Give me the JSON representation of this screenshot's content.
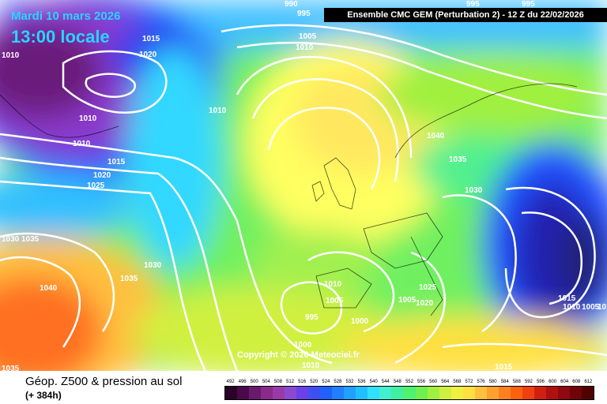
{
  "header": {
    "date": "Mardi 10 mars 2026",
    "time": "13:00 locale",
    "banner": "Ensemble CMC GEM  (Perturbation 2)  -  12 Z du 22/02/2026"
  },
  "copyright": "Copyright © 2026 Meteociel.fr",
  "footer": {
    "title": "Géop. Z500 & pression au sol",
    "subtitle": "(+ 384h)"
  },
  "isobars": [
    {
      "label": "990"
    },
    {
      "label": "995"
    },
    {
      "label": "995"
    },
    {
      "label": "995"
    },
    {
      "label": "1015"
    },
    {
      "label": "1020"
    },
    {
      "label": "1010"
    },
    {
      "label": "1010"
    },
    {
      "label": "1010"
    },
    {
      "label": "1015"
    },
    {
      "label": "1020"
    },
    {
      "label": "1025"
    },
    {
      "label": "1005"
    },
    {
      "label": "1010"
    },
    {
      "label": "1010"
    },
    {
      "label": "1040"
    },
    {
      "label": "1035"
    },
    {
      "label": "1030"
    },
    {
      "label": "1030"
    },
    {
      "label": "1035"
    },
    {
      "label": "1040"
    },
    {
      "label": "1030"
    },
    {
      "label": "1035"
    },
    {
      "label": "1010"
    },
    {
      "label": "1005"
    },
    {
      "label": "995"
    },
    {
      "label": "1000"
    },
    {
      "label": "1000"
    },
    {
      "label": "1010"
    },
    {
      "label": "1025"
    },
    {
      "label": "1005"
    },
    {
      "label": "1020"
    },
    {
      "label": "1015"
    },
    {
      "label": "1010"
    },
    {
      "label": "1005"
    },
    {
      "label": "10"
    },
    {
      "label": "1015"
    },
    {
      "label": "1035"
    }
  ],
  "legend": {
    "ticks": [
      "492",
      "496",
      "500",
      "504",
      "508",
      "512",
      "516",
      "520",
      "524",
      "528",
      "532",
      "536",
      "540",
      "544",
      "548",
      "552",
      "556",
      "560",
      "564",
      "568",
      "572",
      "576",
      "580",
      "584",
      "588",
      "592",
      "596",
      "600",
      "604",
      "608",
      "612"
    ],
    "colors": [
      "#2a0028",
      "#4a0a4a",
      "#6a1a6a",
      "#8a2a8a",
      "#9a3aa8",
      "#8a4ad0",
      "#6a40e8",
      "#4050f0",
      "#2060ff",
      "#2080ff",
      "#20a0ff",
      "#20c0ff",
      "#30e0ff",
      "#40f0d0",
      "#40f0a0",
      "#50f070",
      "#70f050",
      "#a0f040",
      "#d0f040",
      "#f0f040",
      "#ffe040",
      "#ffc040",
      "#ffa030",
      "#ff8020",
      "#ff6010",
      "#f04010",
      "#d02010",
      "#b01010",
      "#900810",
      "#700408",
      "#500000"
    ]
  }
}
